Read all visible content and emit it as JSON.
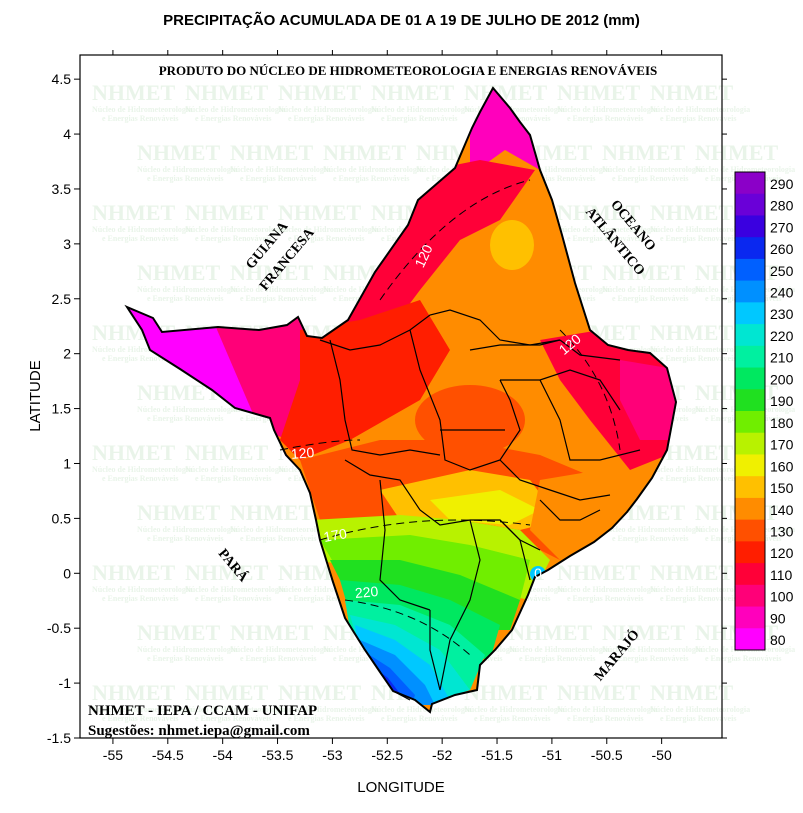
{
  "title": "PRECIPITAÇÃO ACUMULADA DE 01 A 19 DE JULHO DE 2012 (mm)",
  "producer_line": "PRODUTO DO NÚCLEO DE HIDROMETEOROLOGIA E ENERGIAS RENOVÁVEIS",
  "watermark": {
    "logo": "NHMET",
    "caption1": "Núcleo de Hidrometeorologia",
    "caption2": "e Energias Renováveis"
  },
  "credits": {
    "line1": "NHMET - IEPA  /  CCAM - UNIFAP",
    "line2": "Sugestões: nhmet.iepa@gmail.com"
  },
  "axes": {
    "xlabel": "LONGITUDE",
    "ylabel": "LATITUDE",
    "x_ticks": [
      "-55",
      "-54.5",
      "-54",
      "-53.5",
      "-53",
      "-52.5",
      "-52",
      "-51.5",
      "-51",
      "-50.5",
      "-50"
    ],
    "y_ticks": [
      "4.5",
      "4",
      "3.5",
      "3",
      "2.5",
      "2",
      "1.5",
      "1",
      "0.5",
      "0",
      "-0.5",
      "-1",
      "-1.5"
    ],
    "xlim": [
      -55.3,
      -49.45
    ],
    "ylim": [
      -1.5,
      4.72
    ]
  },
  "region_labels": {
    "guiana": [
      "GUIANA",
      "FRANCESA"
    ],
    "oceano": [
      "OCEANO",
      "ATLÂNTICO"
    ],
    "para": "PARÁ",
    "marajo": "MARAJÓ"
  },
  "contour_labels": [
    "120",
    "120",
    "120",
    "170",
    "220",
    "0"
  ],
  "colorbar": {
    "levels": [
      "290",
      "280",
      "270",
      "260",
      "250",
      "240",
      "230",
      "220",
      "210",
      "200",
      "190",
      "180",
      "170",
      "160",
      "150",
      "140",
      "130",
      "120",
      "110",
      "100",
      "90",
      "80"
    ],
    "colors": [
      "#8b00c8",
      "#6a00d8",
      "#3a00e0",
      "#0a28f0",
      "#0060ff",
      "#0090ff",
      "#00c8ff",
      "#00e6d2",
      "#00f0a0",
      "#00e860",
      "#20e020",
      "#70ee00",
      "#b8f200",
      "#f0f000",
      "#ffc000",
      "#ff8c00",
      "#ff5000",
      "#ff1e00",
      "#ff0038",
      "#ff0078",
      "#ff00bc",
      "#ff00ff"
    ]
  }
}
